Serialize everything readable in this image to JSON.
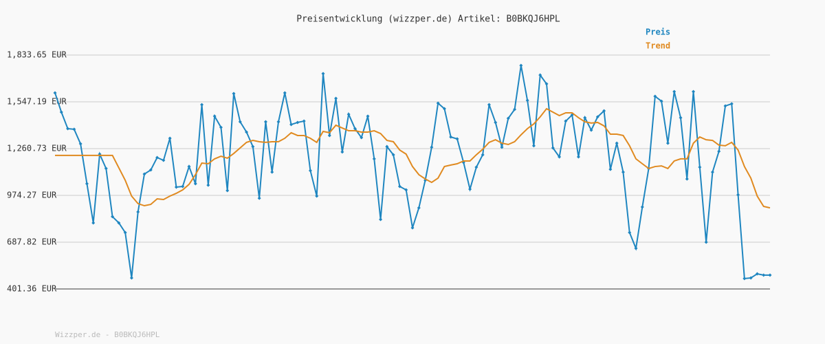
{
  "chart_data": {
    "type": "line",
    "title": "Preisentwicklung (wizzper.de) Artikel: B0BKQJ6HPL",
    "footer": "Wizzper.de - B0BKQJ6HPL",
    "categories": [
      null,
      null,
      null,
      null,
      null,
      null,
      null,
      null,
      null,
      null,
      null,
      null,
      null,
      null,
      null,
      null,
      null,
      null,
      null,
      null,
      null,
      null,
      null,
      null,
      null,
      null,
      null,
      null,
      null,
      null,
      null,
      null,
      null,
      null,
      null,
      null,
      null,
      null,
      null,
      null,
      null,
      null,
      null,
      null,
      null,
      null,
      null,
      null,
      null,
      null,
      null,
      null,
      null,
      null,
      null,
      null,
      null,
      null,
      null,
      null,
      null,
      null,
      null,
      null,
      null,
      null,
      null,
      null,
      null,
      null,
      null,
      null,
      null,
      null,
      null,
      null,
      null,
      null,
      null,
      null,
      null,
      null,
      null,
      null,
      null,
      null,
      null,
      null,
      null,
      null,
      null,
      null,
      null,
      null,
      null,
      null,
      null,
      null,
      null,
      null,
      null,
      null,
      null,
      null,
      null,
      null,
      null,
      null,
      null,
      null,
      null,
      null,
      null
    ],
    "series": [
      {
        "name": "Preis",
        "color": "#1f86c0",
        "markers": true,
        "values": [
          1602,
          1484,
          1383,
          1379,
          1290,
          1046,
          806,
          1227,
          1139,
          844,
          806,
          747,
          469,
          873,
          1105,
          1130,
          1206,
          1189,
          1324,
          1025,
          1029,
          1151,
          1046,
          1530,
          1037,
          1459,
          1391,
          1004,
          1598,
          1425,
          1362,
          1273,
          957,
          1425,
          1117,
          1425,
          1602,
          1408,
          1421,
          1429,
          1126,
          970,
          1720,
          1341,
          1568,
          1240,
          1471,
          1383,
          1328,
          1459,
          1198,
          827,
          1273,
          1223,
          1029,
          1008,
          776,
          898,
          1067,
          1269,
          1539,
          1505,
          1332,
          1320,
          1176,
          1012,
          1147,
          1223,
          1530,
          1421,
          1269,
          1446,
          1501,
          1770,
          1556,
          1278,
          1711,
          1657,
          1265,
          1210,
          1429,
          1467,
          1210,
          1450,
          1374,
          1455,
          1492,
          1134,
          1294,
          1117,
          747,
          650,
          903,
          1139,
          1581,
          1551,
          1294,
          1610,
          1450,
          1075,
          1610,
          1147,
          688,
          1117,
          1244,
          1522,
          1535,
          978,
          465,
          469,
          494,
          486,
          486
        ]
      },
      {
        "name": "Trend",
        "color": "#e08a20",
        "markers": false,
        "values": [
          1219,
          1219,
          1219,
          1219,
          1219,
          1219,
          1219,
          1219,
          1219,
          1219,
          1143,
          1067,
          970,
          924,
          911,
          919,
          953,
          949,
          970,
          987,
          1008,
          1042,
          1101,
          1172,
          1168,
          1198,
          1214,
          1202,
          1231,
          1265,
          1299,
          1311,
          1303,
          1299,
          1303,
          1303,
          1324,
          1358,
          1341,
          1341,
          1324,
          1299,
          1366,
          1358,
          1404,
          1387,
          1370,
          1370,
          1362,
          1362,
          1370,
          1353,
          1311,
          1303,
          1252,
          1227,
          1151,
          1101,
          1075,
          1054,
          1080,
          1151,
          1160,
          1168,
          1185,
          1185,
          1223,
          1257,
          1299,
          1315,
          1294,
          1286,
          1303,
          1345,
          1383,
          1412,
          1455,
          1505,
          1484,
          1463,
          1480,
          1480,
          1450,
          1425,
          1417,
          1421,
          1400,
          1349,
          1349,
          1341,
          1278,
          1198,
          1168,
          1139,
          1151,
          1155,
          1139,
          1185,
          1198,
          1198,
          1294,
          1332,
          1315,
          1311,
          1282,
          1278,
          1299,
          1252,
          1151,
          1080,
          970,
          907,
          898
        ]
      }
    ],
    "ylim": [
      401.36,
      1833.65
    ],
    "yticks": [
      {
        "value": 401.36,
        "label": "401.36 EUR"
      },
      {
        "value": 687.82,
        "label": "687.82 EUR"
      },
      {
        "value": 974.27,
        "label": "974.27 EUR"
      },
      {
        "value": 1260.73,
        "label": "1,260.73 EUR"
      },
      {
        "value": 1547.19,
        "label": "1,547.19 EUR"
      },
      {
        "value": 1833.65,
        "label": "1,833.65 EUR"
      }
    ],
    "grid": true
  }
}
